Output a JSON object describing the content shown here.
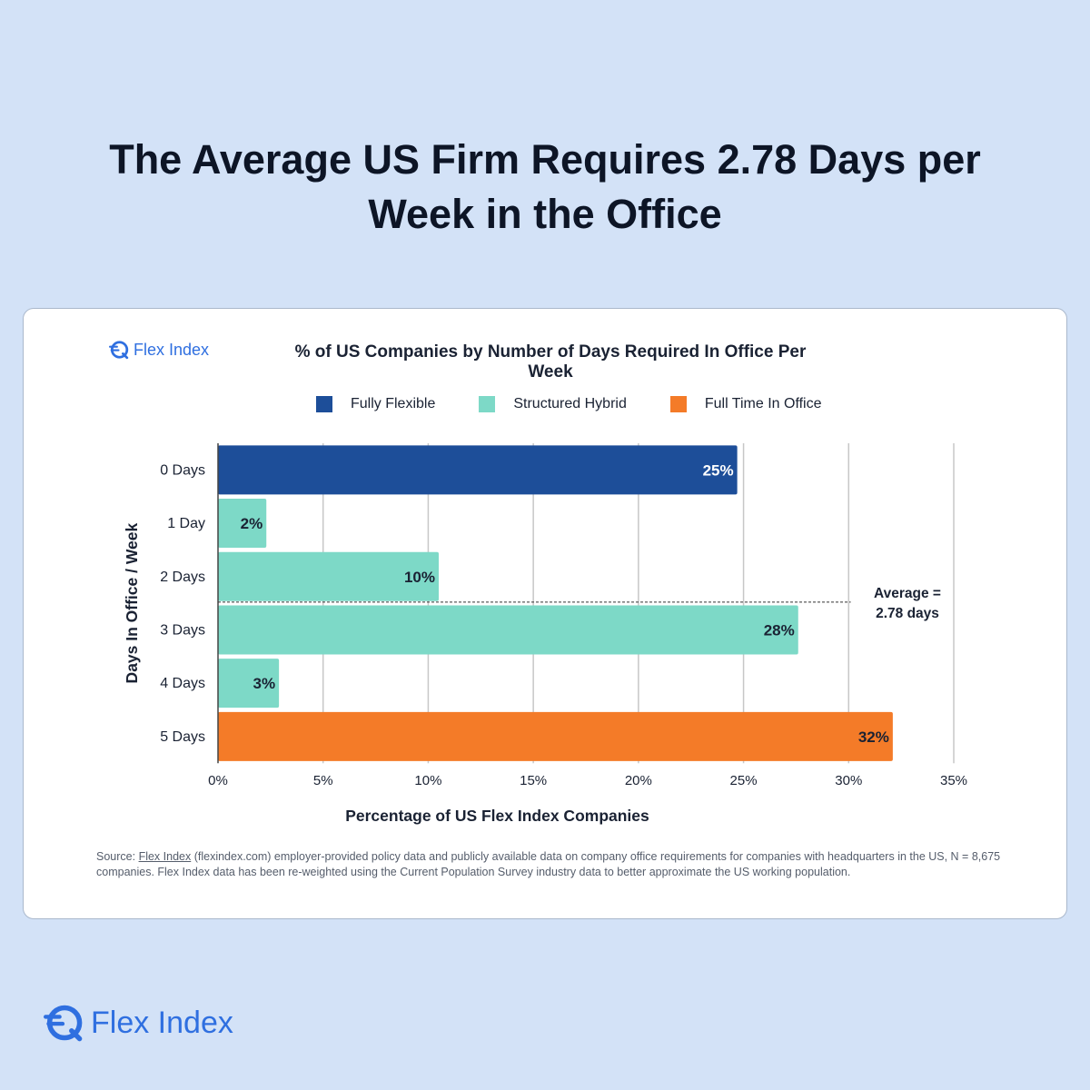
{
  "headline": "The Average US Firm Requires 2.78 Days per Week in the Office",
  "brand": {
    "name": "Flex Index",
    "color": "#2f6fe0",
    "icon": "flex-index-logo-icon"
  },
  "source": {
    "prefix": "Source: ",
    "link_text": "Flex Index",
    "text": " (flexindex.com) employer-provided policy data and publicly available data on company office requirements for companies with headquarters in the US, N = 8,675 companies. Flex Index data has been re-weighted using the Current Population Survey industry data to better approximate the US working population."
  },
  "chart_data": {
    "type": "bar",
    "orientation": "horizontal",
    "title": "% of US Companies by Number of Days Required In Office Per Week",
    "xlabel": "Percentage of US Flex Index Companies",
    "ylabel": "Days In Office / Week",
    "xlim": [
      0,
      35
    ],
    "xticks": [
      "0%",
      "5%",
      "10%",
      "15%",
      "20%",
      "25%",
      "30%",
      "35%"
    ],
    "grid": "vertical",
    "legend_position": "top",
    "categories": [
      "0 Days",
      "1 Day",
      "2 Days",
      "3 Days",
      "4 Days",
      "5 Days"
    ],
    "values": [
      24.7,
      2.3,
      10.5,
      27.6,
      2.9,
      32.1
    ],
    "data_labels": [
      "25%",
      "2%",
      "10%",
      "28%",
      "3%",
      "32%"
    ],
    "bar_groups": [
      "Fully Flexible",
      "Structured Hybrid",
      "Structured Hybrid",
      "Structured Hybrid",
      "Structured Hybrid",
      "Full Time In Office"
    ],
    "legend": [
      {
        "name": "Fully Flexible",
        "color": "#1d4e99"
      },
      {
        "name": "Structured Hybrid",
        "color": "#7dd9c7"
      },
      {
        "name": "Full Time In Office",
        "color": "#f47b28"
      }
    ],
    "average": {
      "value_days": 2.78,
      "label_line1": "Average =",
      "label_line2": "2.78 days"
    }
  }
}
